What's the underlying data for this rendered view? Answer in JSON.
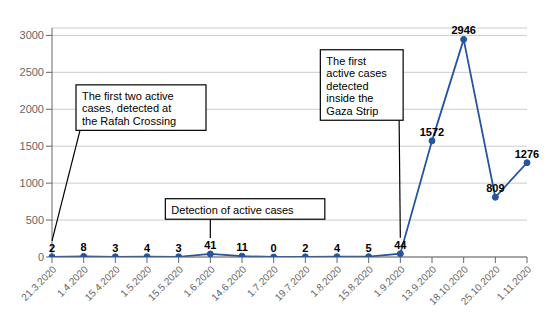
{
  "chart_data": {
    "type": "line",
    "categories": [
      "21.3.2020",
      "1.4.2020",
      "15.4.2020",
      "1.5.2020",
      "15.5.2020",
      "1.6.2020",
      "14.6.2020",
      "1.7.2020",
      "19.7.2020",
      "1.8.2020",
      "15.8.2020",
      "1.9.2020",
      "13.9.2020",
      "18.10.2020",
      "25.10.2020",
      "1.11.2020"
    ],
    "values": [
      2,
      8,
      3,
      4,
      3,
      41,
      11,
      0,
      2,
      4,
      5,
      44,
      1572,
      2946,
      809,
      1276
    ],
    "color": "#2554a0",
    "marker": "circle",
    "ylim": [
      0,
      3100
    ],
    "yticks": [
      0,
      500,
      1000,
      1500,
      2000,
      2500,
      3000
    ],
    "grid": true,
    "data_labels": true,
    "annotations": [
      {
        "text": "The first two active\ncases, detected at\nthe Rafah Crossing",
        "x": "21.3.2020"
      },
      {
        "text": "Detection of active cases",
        "x": "1.6.2020"
      },
      {
        "text": "The first\nactive cases\ndetected\ninside the\nGaza Strip",
        "x": "1.9.2020"
      }
    ]
  }
}
